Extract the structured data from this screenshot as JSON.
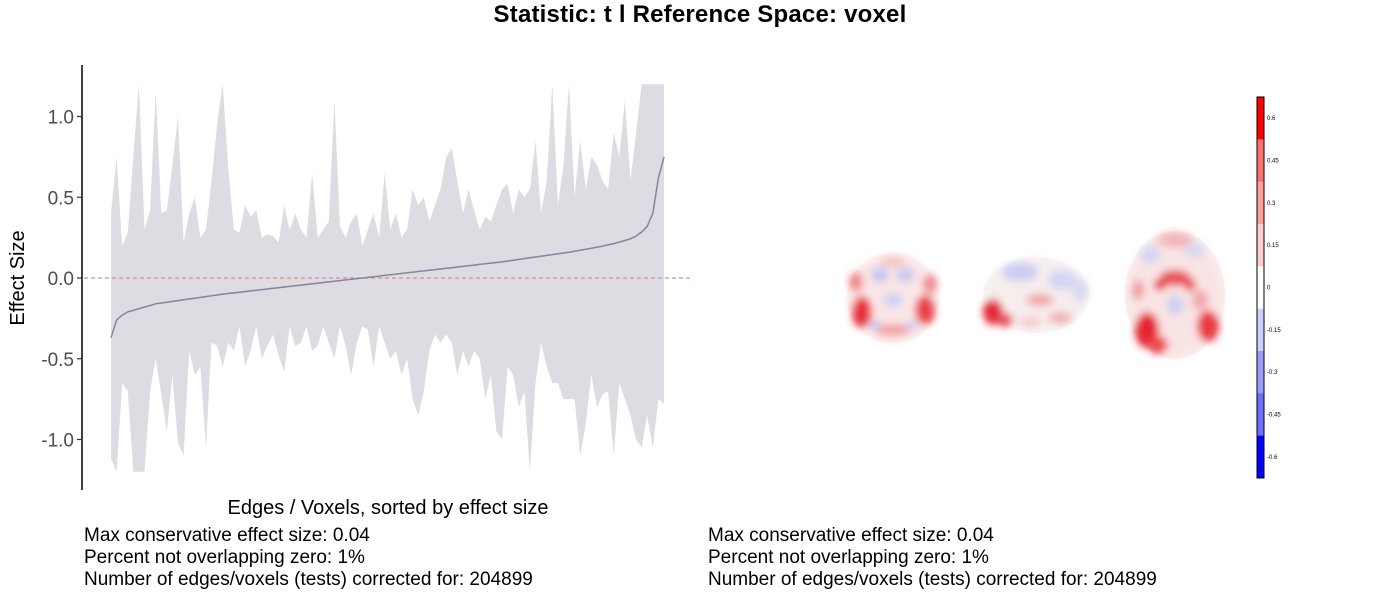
{
  "title": "Statistic: t   l  Reference Space: voxel",
  "chart_data": {
    "type": "area",
    "xlabel": "Edges / Voxels, sorted by effect size",
    "ylabel": "Effect Size",
    "ylim": [
      -1.3,
      1.3
    ],
    "yticks": [
      1.0,
      0.5,
      0.0,
      -0.5,
      -1.0
    ],
    "ytick_labels": [
      "1.0",
      "0.5",
      "0.0",
      "-0.5",
      "-1.0"
    ],
    "reference_line": 0.0,
    "x": [
      0,
      1,
      2,
      3,
      4,
      5,
      6,
      7,
      8,
      9,
      10,
      11,
      12,
      13,
      14,
      15,
      16,
      17,
      18,
      19,
      20,
      21,
      22,
      23,
      24,
      25,
      26,
      27,
      28,
      29,
      30,
      31,
      32,
      33,
      34,
      35,
      36,
      37,
      38,
      39,
      40,
      41,
      42,
      43,
      44,
      45,
      46,
      47,
      48,
      49,
      50,
      51,
      52,
      53,
      54,
      55,
      56,
      57,
      58,
      59,
      60,
      61,
      62,
      63,
      64,
      65,
      66,
      67,
      68,
      69,
      70,
      71,
      72,
      73,
      74,
      75,
      76,
      77,
      78,
      79,
      80,
      81,
      82,
      83,
      84,
      85,
      86,
      87,
      88,
      89,
      90,
      91,
      92,
      93,
      94,
      95,
      96,
      97,
      98,
      99
    ],
    "series": [
      {
        "values": [
          -0.37,
          -0.26,
          -0.23,
          -0.21,
          -0.2,
          -0.19,
          -0.18,
          -0.17,
          -0.16,
          -0.155,
          -0.15,
          -0.145,
          -0.14,
          -0.135,
          -0.13,
          -0.125,
          -0.12,
          -0.115,
          -0.11,
          -0.105,
          -0.1,
          -0.096,
          -0.092,
          -0.088,
          -0.084,
          -0.08,
          -0.076,
          -0.072,
          -0.068,
          -0.064,
          -0.06,
          -0.056,
          -0.052,
          -0.048,
          -0.044,
          -0.04,
          -0.036,
          -0.032,
          -0.028,
          -0.024,
          -0.02,
          -0.016,
          -0.012,
          -0.008,
          -0.004,
          0.0,
          0.004,
          0.008,
          0.012,
          0.016,
          0.02,
          0.024,
          0.028,
          0.032,
          0.036,
          0.04,
          0.044,
          0.048,
          0.052,
          0.056,
          0.06,
          0.064,
          0.068,
          0.072,
          0.076,
          0.08,
          0.084,
          0.088,
          0.092,
          0.096,
          0.1,
          0.105,
          0.11,
          0.115,
          0.12,
          0.125,
          0.13,
          0.135,
          0.14,
          0.145,
          0.15,
          0.155,
          0.16,
          0.166,
          0.172,
          0.178,
          0.184,
          0.19,
          0.197,
          0.205,
          0.213,
          0.222,
          0.232,
          0.243,
          0.26,
          0.285,
          0.32,
          0.4,
          0.62,
          0.75
        ]
      },
      {
        "name": "upper",
        "values": [
          0.4,
          0.75,
          0.2,
          0.28,
          0.75,
          1.2,
          0.3,
          0.42,
          1.15,
          0.4,
          0.42,
          0.7,
          1.0,
          0.22,
          0.4,
          0.5,
          0.25,
          0.3,
          0.6,
          0.95,
          1.2,
          0.68,
          0.3,
          0.28,
          0.45,
          0.38,
          0.42,
          0.25,
          0.27,
          0.26,
          0.22,
          0.45,
          0.3,
          0.4,
          0.3,
          0.25,
          0.65,
          0.25,
          0.3,
          0.35,
          1.1,
          0.32,
          0.25,
          0.35,
          0.4,
          0.2,
          0.3,
          0.4,
          0.25,
          0.65,
          0.3,
          0.4,
          0.25,
          0.3,
          0.55,
          0.45,
          0.5,
          0.35,
          0.45,
          0.55,
          0.75,
          0.8,
          0.6,
          0.4,
          0.55,
          0.42,
          0.3,
          0.38,
          0.35,
          0.45,
          0.55,
          0.58,
          0.4,
          0.55,
          0.5,
          0.55,
          0.85,
          0.4,
          0.6,
          1.2,
          0.45,
          0.7,
          1.2,
          0.5,
          0.85,
          0.55,
          0.75,
          0.7,
          0.6,
          0.55,
          0.9,
          0.75,
          1.1,
          0.6,
          0.9,
          1.2,
          1.2,
          1.2,
          1.2,
          1.2
        ]
      },
      {
        "name": "lower",
        "values": [
          -1.12,
          -1.2,
          -0.65,
          -0.7,
          -1.2,
          -1.2,
          -1.2,
          -0.7,
          -0.5,
          -0.72,
          -0.95,
          -0.6,
          -1.02,
          -1.1,
          -0.45,
          -0.6,
          -0.55,
          -1.05,
          -0.4,
          -0.42,
          -0.55,
          -0.4,
          -0.45,
          -0.3,
          -0.55,
          -0.45,
          -0.3,
          -0.5,
          -0.42,
          -0.35,
          -0.48,
          -0.58,
          -0.3,
          -0.42,
          -0.4,
          -0.3,
          -0.45,
          -0.42,
          -0.3,
          -0.4,
          -0.5,
          -0.3,
          -0.42,
          -0.6,
          -0.4,
          -0.3,
          -0.32,
          -0.55,
          -0.3,
          -0.4,
          -0.5,
          -0.45,
          -0.6,
          -0.5,
          -0.75,
          -0.85,
          -0.7,
          -0.45,
          -0.35,
          -0.4,
          -0.35,
          -0.4,
          -0.6,
          -0.45,
          -0.55,
          -0.45,
          -0.5,
          -0.75,
          -0.6,
          -0.95,
          -1.0,
          -0.55,
          -0.6,
          -0.8,
          -0.7,
          -1.2,
          -0.65,
          -0.4,
          -0.55,
          -0.65,
          -0.65,
          -0.75,
          -0.75,
          -0.75,
          -1.1,
          -0.9,
          -0.6,
          -0.8,
          -0.72,
          -0.7,
          -1.1,
          -0.65,
          -0.75,
          -0.85,
          -1.0,
          -1.05,
          -0.85,
          -1.05,
          -0.75,
          -0.78
        ]
      }
    ]
  },
  "colorbar": {
    "tick_labels": [
      "0.6",
      "0.45",
      "0.3",
      "0.15",
      "0",
      "-0.15",
      "-0.3",
      "-0.45",
      "-0.6"
    ]
  },
  "stats_left": {
    "line1": "Max conservative effect size: 0.04",
    "line2": "Percent not overlapping zero: 1%",
    "line3": "Number of edges/voxels (tests) corrected for: 204899"
  },
  "stats_right": {
    "line1": "Max conservative effect size: 0.04",
    "line2": "Percent not overlapping zero: 1%",
    "line3": "Number of edges/voxels (tests) corrected for: 204899"
  },
  "colors": {
    "ribbon": "#dcdce2",
    "line": "#85859b",
    "zero_line": "#d98c8c",
    "positive": "#ff0000",
    "negative": "#0000ff"
  }
}
